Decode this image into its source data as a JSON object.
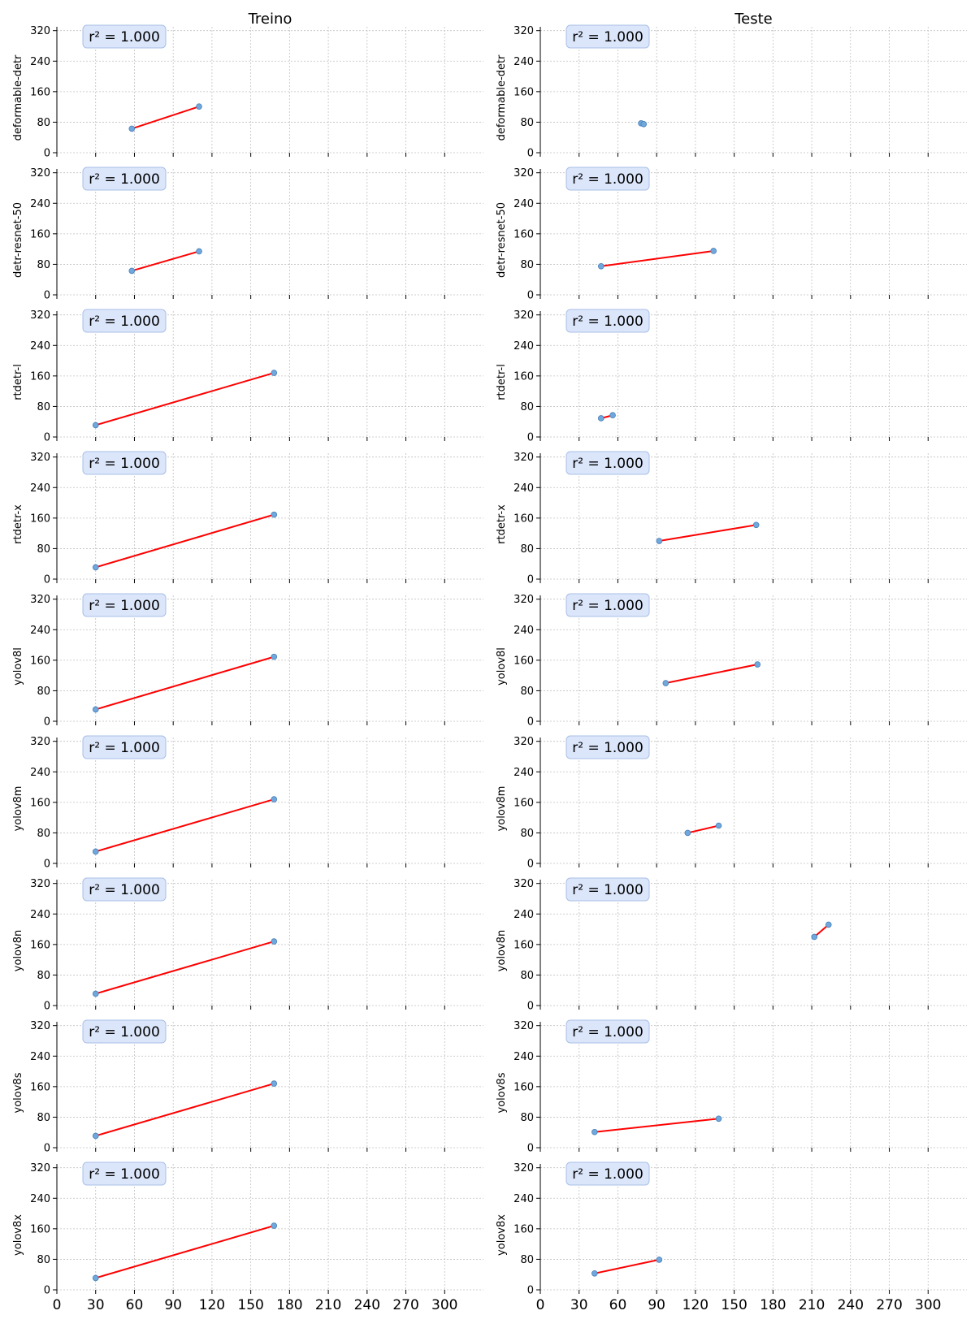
{
  "figure": {
    "columns": [
      "Treino",
      "Teste"
    ]
  },
  "style": {
    "line_color": "#ff0000",
    "marker_color": "#6fa8dc",
    "grid_color": "#c0c0c0",
    "badge_fill": "#dbe6fb",
    "badge_stroke": "#a9bfe6"
  },
  "chart_data": {
    "type": "line",
    "layout": "small-multiples grid, 9 rows x 2 columns, shared x axis",
    "x_ticks": [
      0,
      30,
      60,
      90,
      120,
      150,
      180,
      210,
      240,
      270,
      300
    ],
    "y_ticks": [
      0,
      80,
      160,
      240,
      320
    ],
    "xlim": [
      0,
      330
    ],
    "ylim": [
      0,
      330
    ],
    "grid": true,
    "annotation_format": "r² = 1.000",
    "rows": [
      {
        "ylabel": "deformable-detr",
        "treino": {
          "x": [
            58,
            110
          ],
          "y": [
            63,
            121
          ],
          "annotation": "r² = 1.000"
        },
        "teste": {
          "x": [
            78,
            80
          ],
          "y": [
            77,
            75
          ],
          "annotation": "r² = 1.000"
        }
      },
      {
        "ylabel": "detr-resnet-50",
        "treino": {
          "x": [
            58,
            110
          ],
          "y": [
            63,
            114
          ],
          "annotation": "r² = 1.000"
        },
        "teste": {
          "x": [
            47,
            134
          ],
          "y": [
            75,
            115
          ],
          "annotation": "r² = 1.000"
        }
      },
      {
        "ylabel": "rtdetr-l",
        "treino": {
          "x": [
            30,
            168
          ],
          "y": [
            31,
            168
          ],
          "annotation": "r² = 1.000"
        },
        "teste": {
          "x": [
            47,
            56
          ],
          "y": [
            49,
            57
          ],
          "annotation": "r² = 1.000"
        }
      },
      {
        "ylabel": "rtdetr-x",
        "treino": {
          "x": [
            30,
            168
          ],
          "y": [
            31,
            169
          ],
          "annotation": "r² = 1.000"
        },
        "teste": {
          "x": [
            92,
            167
          ],
          "y": [
            100,
            142
          ],
          "annotation": "r² = 1.000"
        }
      },
      {
        "ylabel": "yolov8l",
        "treino": {
          "x": [
            30,
            168
          ],
          "y": [
            31,
            169
          ],
          "annotation": "r² = 1.000"
        },
        "teste": {
          "x": [
            97,
            168
          ],
          "y": [
            100,
            149
          ],
          "annotation": "r² = 1.000"
        }
      },
      {
        "ylabel": "yolov8m",
        "treino": {
          "x": [
            30,
            168
          ],
          "y": [
            31,
            168
          ],
          "annotation": "r² = 1.000"
        },
        "teste": {
          "x": [
            114,
            138
          ],
          "y": [
            80,
            99
          ],
          "annotation": "r² = 1.000"
        }
      },
      {
        "ylabel": "yolov8n",
        "treino": {
          "x": [
            30,
            168
          ],
          "y": [
            31,
            168
          ],
          "annotation": "r² = 1.000"
        },
        "teste": {
          "x": [
            212,
            223
          ],
          "y": [
            180,
            212
          ],
          "annotation": "r² = 1.000"
        }
      },
      {
        "ylabel": "yolov8s",
        "treino": {
          "x": [
            30,
            168
          ],
          "y": [
            31,
            168
          ],
          "annotation": "r² = 1.000"
        },
        "teste": {
          "x": [
            42,
            138
          ],
          "y": [
            41,
            76
          ],
          "annotation": "r² = 1.000"
        }
      },
      {
        "ylabel": "yolov8x",
        "treino": {
          "x": [
            30,
            168
          ],
          "y": [
            31,
            168
          ],
          "annotation": "r² = 1.000"
        },
        "teste": {
          "x": [
            42,
            92
          ],
          "y": [
            43,
            79
          ],
          "annotation": "r² = 1.000"
        }
      }
    ]
  }
}
